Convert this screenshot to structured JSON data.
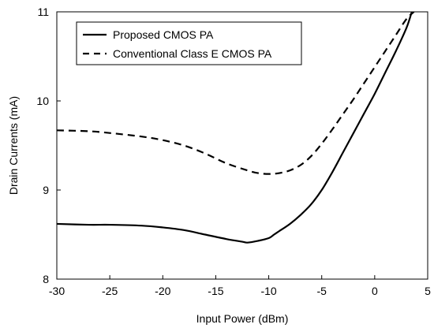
{
  "chart_data": {
    "type": "line",
    "xlabel": "Input Power (dBm)",
    "ylabel": "Drain Currents (mA)",
    "xlim": [
      -30,
      5
    ],
    "ylim": [
      8,
      11
    ],
    "xticks": [
      "-30",
      "-25",
      "-20",
      "-15",
      "-10",
      "-5",
      "0",
      "5"
    ],
    "yticks": [
      "8",
      "9",
      "10",
      "11"
    ],
    "legend_position": "top-left",
    "grid": false,
    "series": [
      {
        "name": "Proposed CMOS PA",
        "style": "solid",
        "color": "#000000",
        "x": [
          -30,
          -27,
          -25,
          -22,
          -20,
          -18,
          -16,
          -14,
          -12.5,
          -12,
          -11,
          -10,
          -9.5,
          -9,
          -8,
          -7,
          -6,
          -5,
          -4,
          -3,
          -2,
          -1,
          0,
          1,
          2,
          3,
          3.5
        ],
        "y": [
          8.62,
          8.61,
          8.61,
          8.6,
          8.58,
          8.55,
          8.5,
          8.45,
          8.42,
          8.41,
          8.43,
          8.46,
          8.5,
          8.54,
          8.62,
          8.72,
          8.84,
          9.0,
          9.2,
          9.42,
          9.64,
          9.86,
          10.08,
          10.32,
          10.56,
          10.82,
          11.0
        ]
      },
      {
        "name": "Conventional Class E CMOS PA",
        "style": "dashed",
        "color": "#000000",
        "x": [
          -30,
          -27,
          -25,
          -22,
          -20,
          -18,
          -16,
          -14,
          -12,
          -11,
          -10,
          -9,
          -8,
          -7,
          -6,
          -5,
          -4,
          -3,
          -2,
          -1,
          0,
          1,
          2,
          3,
          3.7
        ],
        "y": [
          9.67,
          9.66,
          9.64,
          9.6,
          9.56,
          9.5,
          9.41,
          9.3,
          9.22,
          9.19,
          9.18,
          9.19,
          9.22,
          9.28,
          9.38,
          9.52,
          9.68,
          9.85,
          10.02,
          10.2,
          10.38,
          10.56,
          10.74,
          10.92,
          11.0
        ]
      }
    ]
  }
}
